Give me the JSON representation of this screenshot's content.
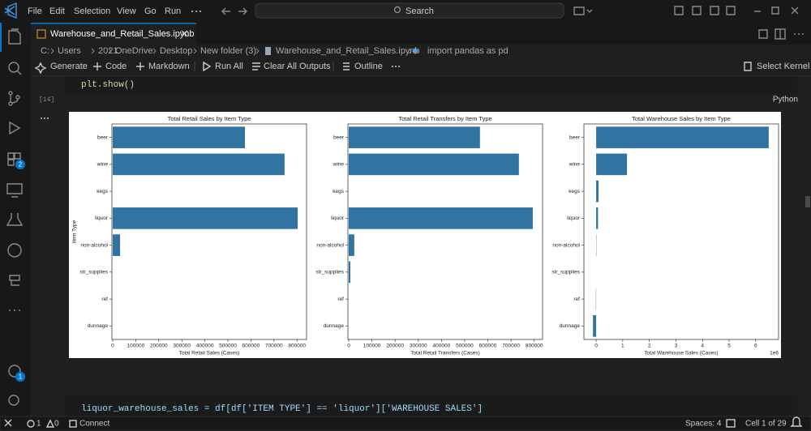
{
  "menu": [
    "File",
    "Edit",
    "Selection",
    "View",
    "Go",
    "Run"
  ],
  "search": "Search",
  "tab": "Warehouse_and_Retail_Sales.ipynb",
  "breadcrumb": [
    "C:",
    "Users",
    "2021",
    "OneDrive",
    "Desktop",
    "New folder (3)",
    "Warehouse_and_Retail_Sales.ipynb",
    "import pandas as pd"
  ],
  "toolbar": {
    "generate": "Generate",
    "code": "Code",
    "markdown": "Markdown",
    "run_all": "Run All",
    "clear": "Clear All Outputs",
    "outline": "Outline",
    "kernel": "Select Kernel"
  },
  "cells": {
    "code_1": "plt.show()",
    "exec_count": "[14]",
    "language": "Python",
    "code_2": "liquor_warehouse_sales = df[df['ITEM TYPE'] == 'liquor']['WAREHOUSE SALES']"
  },
  "badges": {
    "extensions": "2",
    "accounts": "1"
  },
  "status": {
    "errors": "1",
    "warnings": "0",
    "connect": "Connect",
    "spaces": "Spaces: 4",
    "cell": "Cell 1 of 29"
  },
  "chart_data": [
    {
      "type": "barh",
      "title": "Total Retail Sales by Item Type",
      "xlabel": "Total Retail Sales (Cases)",
      "ylabel": "Item Type",
      "categories": [
        "beer",
        "wine",
        "kegs",
        "liquor",
        "non-alcohol",
        "str_supplies",
        "ref",
        "dunnage"
      ],
      "values": [
        574000,
        746000,
        0,
        803000,
        32000,
        0,
        0,
        0
      ],
      "color": "#3274a1",
      "xlim": [
        -3500,
        841500
      ],
      "xticks": [
        0,
        100000,
        200000,
        300000,
        400000,
        500000,
        600000,
        700000,
        800000
      ]
    },
    {
      "type": "barh",
      "title": "Total Retail Transfers by Item Type",
      "xlabel": "Total Retail Transfers (Cases)",
      "categories": [
        "beer",
        "wine",
        "kegs",
        "liquor",
        "non-alcohol",
        "str_supplies",
        "ref",
        "dunnage"
      ],
      "values": [
        566000,
        734000,
        0,
        794000,
        24000,
        7000,
        0,
        0
      ],
      "color": "#3274a1",
      "xlim": [
        -3500,
        836000
      ],
      "xticks": [
        0,
        100000,
        200000,
        300000,
        400000,
        500000,
        600000,
        700000,
        800000
      ]
    },
    {
      "type": "barh",
      "title": "Total Warehouse Sales by Item Type",
      "xlabel": "Total Warehouse Sales (Cases)",
      "offset_label": "1e6",
      "categories": [
        "beer",
        "wine",
        "kegs",
        "liquor",
        "non-alcohol",
        "str_supplies",
        "ref",
        "dunnage"
      ],
      "values": [
        6.49,
        1.16,
        0.09,
        0.07,
        0.01,
        0,
        -0.01,
        -0.12
      ],
      "color": "#3274a1",
      "xlim": [
        -0.46,
        6.86
      ],
      "xticks": [
        0,
        1,
        2,
        3,
        4,
        5,
        6
      ]
    }
  ]
}
